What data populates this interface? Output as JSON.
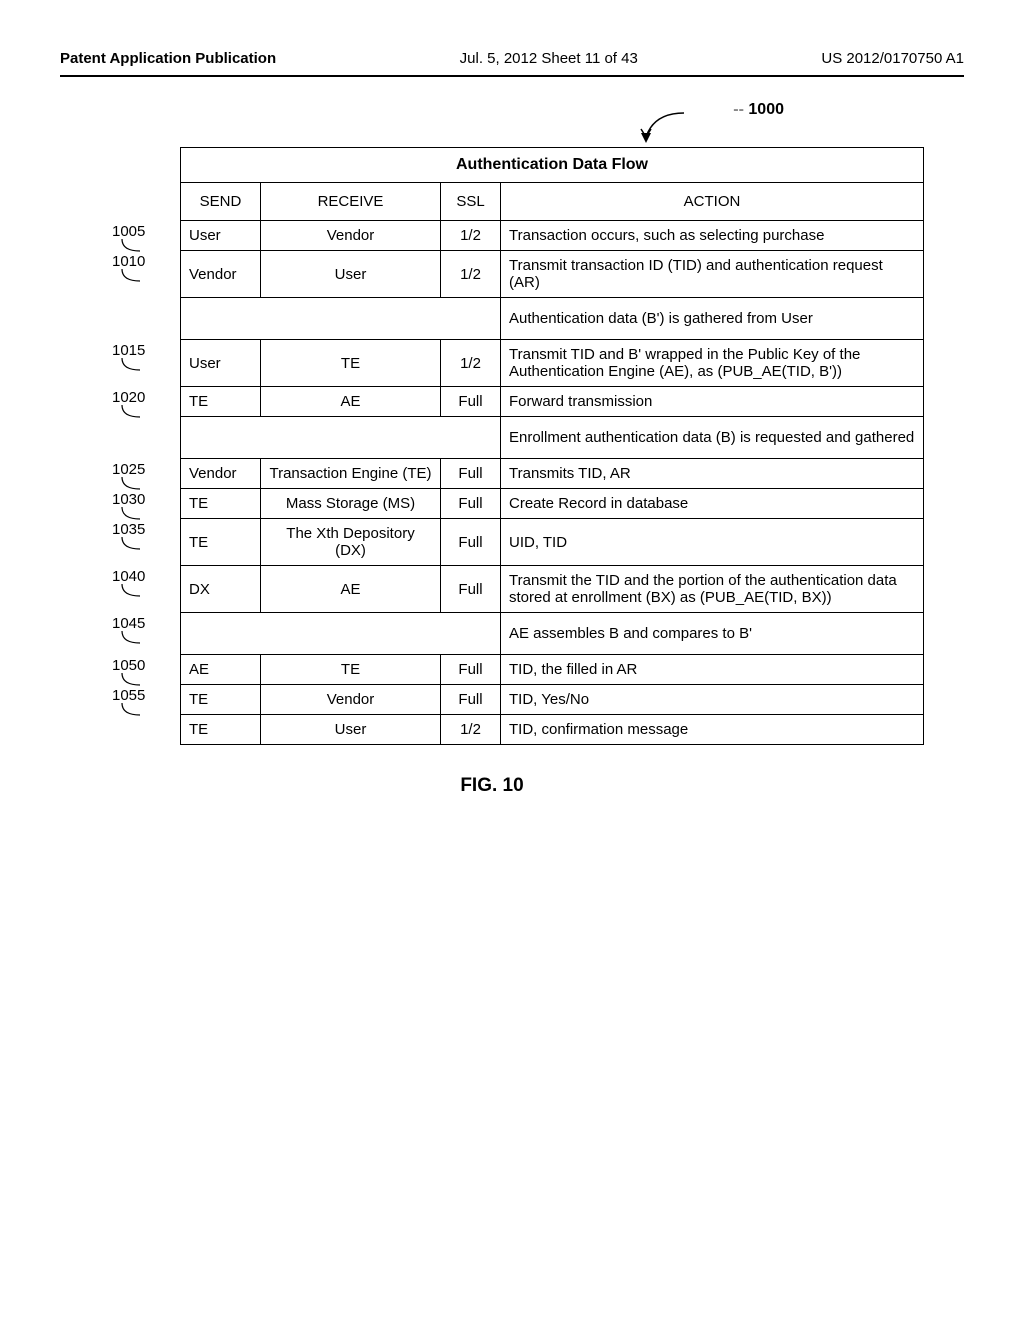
{
  "header": {
    "left": "Patent Application Publication",
    "mid": "Jul. 5, 2012   Sheet 11 of 43",
    "right": "US 2012/0170750 A1"
  },
  "figure": {
    "number_label": "1000",
    "title": "Authentication Data Flow",
    "caption": "FIG. 10",
    "columns": {
      "send": "SEND",
      "receive": "RECEIVE",
      "ssl": "SSL",
      "action": "ACTION"
    },
    "rows": [
      {
        "label": "1005",
        "send": "User",
        "receive": "Vendor",
        "ssl": "1/2",
        "action": "Transaction occurs, such as selecting purchase"
      },
      {
        "label": "1010",
        "send": "Vendor",
        "receive": "User",
        "ssl": "1/2",
        "action": "Transmit transaction ID (TID) and authentication request (AR)"
      },
      {
        "span": true,
        "action": "Authentication data (B') is gathered from User"
      },
      {
        "label": "1015",
        "send": "User",
        "receive": "TE",
        "ssl": "1/2",
        "action": "Transmit TID and B' wrapped in the Public Key of the Authentication Engine (AE), as (PUB_AE(TID, B'))"
      },
      {
        "label": "1020",
        "send": "TE",
        "receive": "AE",
        "ssl": "Full",
        "action": "Forward transmission"
      },
      {
        "span": true,
        "action": "Enrollment authentication data (B) is requested and gathered"
      },
      {
        "label": "1025",
        "send": "Vendor",
        "receive": "Transaction Engine (TE)",
        "ssl": "Full",
        "action": "Transmits TID, AR"
      },
      {
        "label": "1030",
        "send": "TE",
        "receive": "Mass Storage (MS)",
        "ssl": "Full",
        "action": "Create Record in database"
      },
      {
        "label": "1035",
        "send": "TE",
        "receive": "The Xth Depository (DX)",
        "ssl": "Full",
        "action": "UID, TID"
      },
      {
        "label": "1040",
        "send": "DX",
        "receive": "AE",
        "ssl": "Full",
        "action": "Transmit the TID and the portion of the authentication data stored at enrollment (BX) as (PUB_AE(TID, BX))"
      },
      {
        "label": "1045",
        "span": true,
        "action": "AE assembles B and compares to B'"
      },
      {
        "label": "1050",
        "send": "AE",
        "receive": "TE",
        "ssl": "Full",
        "action": "TID, the filled in AR"
      },
      {
        "label": "1055",
        "send": "TE",
        "receive": "Vendor",
        "ssl": "Full",
        "action": "TID, Yes/No"
      },
      {
        "send": "TE",
        "receive": "User",
        "ssl": "1/2",
        "action": "TID, confirmation message"
      }
    ]
  },
  "style": {
    "row_label_offsets": [
      16,
      14,
      14,
      6,
      4,
      6,
      4,
      4,
      16,
      6,
      4
    ],
    "lead_svg_width": 28,
    "lead_svg_height": 22
  }
}
